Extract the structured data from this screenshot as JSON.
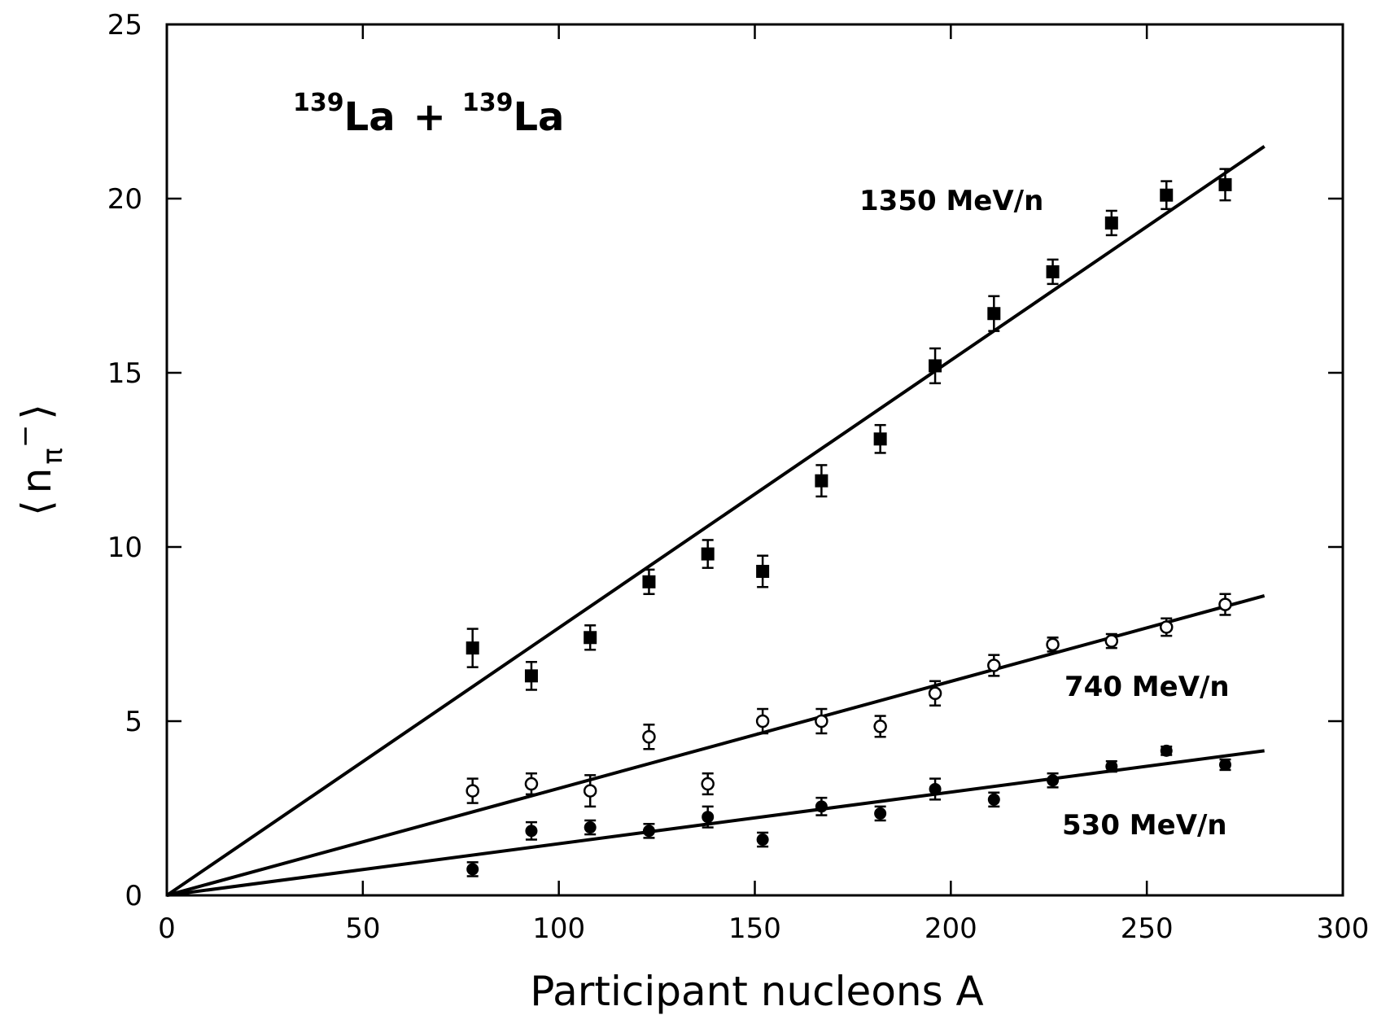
{
  "chart_data": {
    "type": "scatter",
    "title": "",
    "annotation": {
      "mass1": "139",
      "el1": "La",
      "plus": "+",
      "mass2": "139",
      "el2": "La"
    },
    "xlabel": "Participant nucleons A",
    "ylabel": {
      "open": "⟨",
      "n": "n",
      "sub": "π",
      "sup": "−",
      "close": "⟩"
    },
    "xlim": [
      0,
      300
    ],
    "ylim": [
      0,
      25
    ],
    "xticks": [
      0,
      50,
      100,
      150,
      200,
      250,
      300
    ],
    "yticks": [
      0,
      5,
      10,
      15,
      20,
      25
    ],
    "grid": false,
    "series": [
      {
        "name": "1350 MeV/n",
        "marker": "filled-square",
        "fit": {
          "x": [
            0,
            280
          ],
          "y": [
            0,
            21.5
          ]
        },
        "points": [
          {
            "x": 78,
            "y": 7.1,
            "err": 0.55
          },
          {
            "x": 93,
            "y": 6.3,
            "err": 0.4
          },
          {
            "x": 108,
            "y": 7.4,
            "err": 0.35
          },
          {
            "x": 123,
            "y": 9.0,
            "err": 0.35
          },
          {
            "x": 138,
            "y": 9.8,
            "err": 0.4
          },
          {
            "x": 152,
            "y": 9.3,
            "err": 0.45
          },
          {
            "x": 167,
            "y": 11.9,
            "err": 0.45
          },
          {
            "x": 182,
            "y": 13.1,
            "err": 0.4
          },
          {
            "x": 196,
            "y": 15.2,
            "err": 0.5
          },
          {
            "x": 211,
            "y": 16.7,
            "err": 0.5
          },
          {
            "x": 226,
            "y": 17.9,
            "err": 0.35
          },
          {
            "x": 241,
            "y": 19.3,
            "err": 0.35
          },
          {
            "x": 255,
            "y": 20.1,
            "err": 0.4
          },
          {
            "x": 270,
            "y": 20.4,
            "err": 0.45
          }
        ]
      },
      {
        "name": "740 MeV/n",
        "marker": "open-circle",
        "fit": {
          "x": [
            0,
            280
          ],
          "y": [
            0,
            8.6
          ]
        },
        "points": [
          {
            "x": 78,
            "y": 3.0,
            "err": 0.35
          },
          {
            "x": 93,
            "y": 3.2,
            "err": 0.3
          },
          {
            "x": 108,
            "y": 3.0,
            "err": 0.45
          },
          {
            "x": 123,
            "y": 4.55,
            "err": 0.35
          },
          {
            "x": 138,
            "y": 3.2,
            "err": 0.3
          },
          {
            "x": 152,
            "y": 5.0,
            "err": 0.35
          },
          {
            "x": 167,
            "y": 5.0,
            "err": 0.35
          },
          {
            "x": 182,
            "y": 4.85,
            "err": 0.3
          },
          {
            "x": 196,
            "y": 5.8,
            "err": 0.35
          },
          {
            "x": 211,
            "y": 6.6,
            "err": 0.3
          },
          {
            "x": 226,
            "y": 7.2,
            "err": 0.2
          },
          {
            "x": 241,
            "y": 7.3,
            "err": 0.2
          },
          {
            "x": 255,
            "y": 7.7,
            "err": 0.25
          },
          {
            "x": 270,
            "y": 8.35,
            "err": 0.3
          }
        ]
      },
      {
        "name": "530 MeV/n",
        "marker": "filled-circle",
        "fit": {
          "x": [
            0,
            280
          ],
          "y": [
            0,
            4.15
          ]
        },
        "points": [
          {
            "x": 78,
            "y": 0.75,
            "err": 0.2
          },
          {
            "x": 93,
            "y": 1.85,
            "err": 0.25
          },
          {
            "x": 108,
            "y": 1.95,
            "err": 0.2
          },
          {
            "x": 123,
            "y": 1.85,
            "err": 0.2
          },
          {
            "x": 138,
            "y": 2.25,
            "err": 0.3
          },
          {
            "x": 152,
            "y": 1.6,
            "err": 0.2
          },
          {
            "x": 167,
            "y": 2.55,
            "err": 0.25
          },
          {
            "x": 182,
            "y": 2.35,
            "err": 0.2
          },
          {
            "x": 196,
            "y": 3.05,
            "err": 0.3
          },
          {
            "x": 211,
            "y": 2.75,
            "err": 0.2
          },
          {
            "x": 226,
            "y": 3.3,
            "err": 0.2
          },
          {
            "x": 241,
            "y": 3.7,
            "err": 0.15
          },
          {
            "x": 255,
            "y": 4.15,
            "err": 0.12
          },
          {
            "x": 270,
            "y": 3.75,
            "err": 0.15
          }
        ]
      }
    ]
  }
}
